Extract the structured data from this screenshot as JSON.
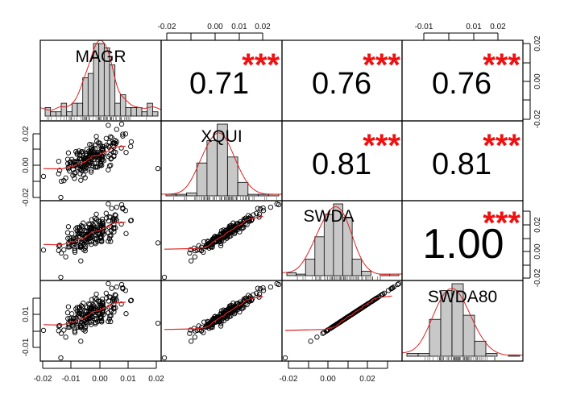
{
  "chart_data": {
    "type": "scatter-matrix",
    "title": "",
    "variables": [
      "MAGR",
      "XQUI",
      "SWDA",
      "SWDA80"
    ],
    "correlations": [
      {
        "row": "MAGR",
        "col": "XQUI",
        "value": "0.71",
        "significance": "***"
      },
      {
        "row": "MAGR",
        "col": "SWDA",
        "value": "0.76",
        "significance": "***"
      },
      {
        "row": "MAGR",
        "col": "SWDA80",
        "value": "0.76",
        "significance": "***"
      },
      {
        "row": "XQUI",
        "col": "SWDA",
        "value": "0.81",
        "significance": "***"
      },
      {
        "row": "XQUI",
        "col": "SWDA80",
        "value": "0.81",
        "significance": "***"
      },
      {
        "row": "SWDA",
        "col": "SWDA80",
        "value": "1.00",
        "significance": "***"
      }
    ],
    "histograms": {
      "MAGR": [
        2,
        1,
        1,
        3,
        1,
        3,
        3,
        9,
        10,
        17,
        17,
        16,
        12,
        3,
        5,
        2,
        2,
        2,
        1,
        3,
        1
      ],
      "XQUI": [
        1,
        1,
        2,
        22,
        37,
        48,
        26,
        9,
        1,
        1,
        1
      ],
      "SWDA": [
        2,
        1,
        11,
        26,
        41,
        48,
        39,
        11,
        3,
        0,
        1,
        1
      ],
      "SWDA80": [
        2,
        2,
        27,
        48,
        53,
        30,
        11,
        2,
        0,
        1
      ]
    },
    "axes": {
      "top_col2": {
        "ticks": [
          "-0.02",
          "",
          "0.00",
          "0.01",
          "0.02"
        ]
      },
      "top_col4": {
        "ticks": [
          "-0.01",
          "",
          "0.01",
          "0.02"
        ]
      },
      "right_row1": {
        "ticks": [
          "0.02",
          "",
          "0.00",
          "",
          "-0.02"
        ]
      },
      "right_row3": {
        "ticks": [
          "",
          "0.02",
          "",
          "0.00",
          "",
          "-0.02"
        ]
      },
      "left_row2": {
        "ticks": [
          "0.02",
          "",
          "0.00",
          "",
          "-0.02"
        ]
      },
      "left_row4": {
        "ticks": [
          "",
          "0.01",
          "",
          "-0.01"
        ]
      },
      "bottom_col1": {
        "ticks": [
          "-0.02",
          "-0.01",
          "0.00",
          "0.01",
          "0.02"
        ]
      },
      "bottom_col3": {
        "ticks": [
          "-0.02",
          "",
          "0.00",
          "",
          "0.02",
          ""
        ]
      }
    },
    "colors": {
      "bar_fill": "#c8c8c8",
      "density": "#dd2222",
      "stars": "#ee1111",
      "fit_line": "#dd2222"
    }
  }
}
